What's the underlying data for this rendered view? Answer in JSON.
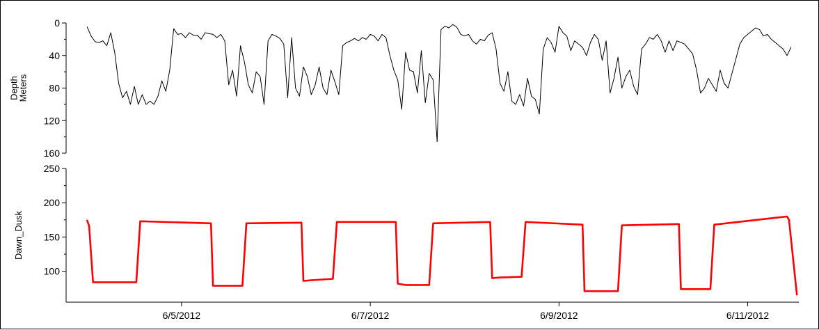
{
  "chart_data": [
    {
      "type": "line",
      "ylabel": [
        "Depth",
        "Meters"
      ],
      "yticks": [
        0,
        40,
        80,
        120,
        160
      ],
      "ylim": [
        0,
        160
      ],
      "y_inverted": true,
      "color": "#000000",
      "x": [
        "2012-06-04T00:00",
        "2012-06-04T01:00",
        "2012-06-04T02:00",
        "2012-06-04T03:00",
        "2012-06-04T04:00",
        "2012-06-04T05:00",
        "2012-06-04T06:00",
        "2012-06-04T07:00",
        "2012-06-04T08:00",
        "2012-06-04T09:00",
        "2012-06-04T10:00",
        "2012-06-04T11:00",
        "2012-06-04T12:00",
        "2012-06-04T13:00",
        "2012-06-04T14:00",
        "2012-06-04T15:00",
        "2012-06-04T16:00",
        "2012-06-04T17:00",
        "2012-06-04T18:00",
        "2012-06-04T19:00",
        "2012-06-04T20:00",
        "2012-06-04T21:00",
        "2012-06-04T22:00",
        "2012-06-04T23:00",
        "2012-06-05T00:00",
        "2012-06-05T01:00",
        "2012-06-05T02:00",
        "2012-06-05T03:00",
        "2012-06-05T04:00",
        "2012-06-05T05:00",
        "2012-06-05T06:00",
        "2012-06-05T07:00",
        "2012-06-05T08:00",
        "2012-06-05T09:00",
        "2012-06-05T10:00",
        "2012-06-05T11:00",
        "2012-06-05T12:00",
        "2012-06-05T13:00",
        "2012-06-05T14:00",
        "2012-06-05T15:00",
        "2012-06-05T16:00",
        "2012-06-05T17:00",
        "2012-06-05T18:00",
        "2012-06-05T19:00",
        "2012-06-05T20:00",
        "2012-06-05T21:00",
        "2012-06-05T22:00",
        "2012-06-05T23:00",
        "2012-06-06T00:00",
        "2012-06-06T01:00",
        "2012-06-06T02:00",
        "2012-06-06T03:00",
        "2012-06-06T04:00",
        "2012-06-06T05:00",
        "2012-06-06T06:00",
        "2012-06-06T07:00",
        "2012-06-06T08:00",
        "2012-06-06T09:00",
        "2012-06-06T10:00",
        "2012-06-06T11:00",
        "2012-06-06T12:00",
        "2012-06-06T13:00",
        "2012-06-06T14:00",
        "2012-06-06T15:00",
        "2012-06-06T16:00",
        "2012-06-06T17:00",
        "2012-06-06T18:00",
        "2012-06-06T19:00",
        "2012-06-06T20:00",
        "2012-06-06T21:00",
        "2012-06-06T22:00",
        "2012-06-06T23:00",
        "2012-06-07T00:00",
        "2012-06-07T01:00",
        "2012-06-07T02:00",
        "2012-06-07T03:00",
        "2012-06-07T04:00",
        "2012-06-07T05:00",
        "2012-06-07T06:00",
        "2012-06-07T07:00",
        "2012-06-07T08:00",
        "2012-06-07T09:00",
        "2012-06-07T10:00",
        "2012-06-07T11:00",
        "2012-06-07T12:00",
        "2012-06-07T13:00",
        "2012-06-07T14:00",
        "2012-06-07T15:00",
        "2012-06-07T16:00",
        "2012-06-07T17:00",
        "2012-06-07T18:00",
        "2012-06-07T19:00",
        "2012-06-07T20:00",
        "2012-06-07T21:00",
        "2012-06-07T22:00",
        "2012-06-07T23:00",
        "2012-06-08T00:00",
        "2012-06-08T01:00",
        "2012-06-08T02:00",
        "2012-06-08T03:00",
        "2012-06-08T04:00",
        "2012-06-08T05:00",
        "2012-06-08T06:00",
        "2012-06-08T07:00",
        "2012-06-08T08:00",
        "2012-06-08T09:00",
        "2012-06-08T10:00",
        "2012-06-08T11:00",
        "2012-06-08T12:00",
        "2012-06-08T13:00",
        "2012-06-08T14:00",
        "2012-06-08T15:00",
        "2012-06-08T16:00",
        "2012-06-08T17:00",
        "2012-06-08T18:00",
        "2012-06-08T19:00",
        "2012-06-08T20:00",
        "2012-06-08T21:00",
        "2012-06-08T22:00",
        "2012-06-08T23:00",
        "2012-06-09T00:00",
        "2012-06-09T01:00",
        "2012-06-09T02:00",
        "2012-06-09T03:00",
        "2012-06-09T04:00",
        "2012-06-09T05:00",
        "2012-06-09T06:00",
        "2012-06-09T07:00",
        "2012-06-09T08:00",
        "2012-06-09T09:00",
        "2012-06-09T10:00",
        "2012-06-09T11:00",
        "2012-06-09T12:00",
        "2012-06-09T13:00",
        "2012-06-09T14:00",
        "2012-06-09T15:00",
        "2012-06-09T16:00",
        "2012-06-09T17:00",
        "2012-06-09T18:00",
        "2012-06-09T19:00",
        "2012-06-09T20:00",
        "2012-06-09T21:00",
        "2012-06-09T22:00",
        "2012-06-09T23:00",
        "2012-06-10T00:00",
        "2012-06-10T01:00",
        "2012-06-10T02:00",
        "2012-06-10T03:00",
        "2012-06-10T04:00",
        "2012-06-10T05:00",
        "2012-06-10T06:00",
        "2012-06-10T07:00",
        "2012-06-10T08:00",
        "2012-06-10T09:00",
        "2012-06-10T10:00",
        "2012-06-10T11:00",
        "2012-06-10T12:00",
        "2012-06-10T13:00",
        "2012-06-10T14:00",
        "2012-06-10T15:00",
        "2012-06-10T16:00",
        "2012-06-10T17:00",
        "2012-06-10T18:00",
        "2012-06-10T19:00",
        "2012-06-10T20:00",
        "2012-06-10T21:00",
        "2012-06-10T22:00",
        "2012-06-10T23:00",
        "2012-06-11T00:00",
        "2012-06-11T01:00",
        "2012-06-11T02:00",
        "2012-06-11T03:00",
        "2012-06-11T04:00",
        "2012-06-11T05:00",
        "2012-06-11T06:00",
        "2012-06-11T07:00",
        "2012-06-11T08:00",
        "2012-06-11T09:00",
        "2012-06-11T10:00",
        "2012-06-11T11:00"
      ],
      "y": [
        5,
        16,
        23,
        24,
        22,
        28,
        12,
        36,
        74,
        92,
        84,
        100,
        78,
        100,
        88,
        100,
        96,
        100,
        90,
        71,
        84,
        58,
        7,
        14,
        13,
        18,
        12,
        15,
        15,
        20,
        12,
        13,
        14,
        18,
        14,
        22,
        76,
        58,
        90,
        28,
        48,
        76,
        86,
        60,
        66,
        100,
        22,
        14,
        16,
        19,
        26,
        92,
        18,
        80,
        90,
        54,
        66,
        88,
        76,
        54,
        80,
        88,
        58,
        72,
        88,
        28,
        24,
        22,
        19,
        22,
        18,
        20,
        14,
        16,
        22,
        14,
        18,
        40,
        58,
        70,
        106,
        36,
        58,
        60,
        86,
        34,
        98,
        62,
        70,
        146,
        8,
        4,
        6,
        2,
        5,
        14,
        16,
        14,
        22,
        26,
        20,
        22,
        15,
        12,
        32,
        74,
        84,
        60,
        96,
        100,
        88,
        102,
        68,
        90,
        94,
        112,
        32,
        18,
        24,
        36,
        4,
        12,
        16,
        34,
        22,
        26,
        30,
        40,
        24,
        14,
        20,
        46,
        22,
        86,
        68,
        42,
        80,
        66,
        58,
        78,
        88,
        32,
        26,
        18,
        20,
        14,
        22,
        36,
        22,
        34,
        22,
        24,
        26,
        32,
        38,
        58,
        86,
        80,
        68,
        76,
        84,
        58,
        74,
        80,
        62,
        44,
        26,
        18,
        14,
        10,
        6,
        8,
        16,
        14,
        20,
        24,
        28,
        32,
        40,
        30
      ]
    },
    {
      "type": "line",
      "ylabel": "Dawn_Dusk",
      "yticks": [
        100,
        150,
        200,
        250
      ],
      "ylim": [
        55,
        250
      ],
      "color": "#ff0000",
      "x": [
        "2012-06-04T00:00",
        "2012-06-04T00:30",
        "2012-06-04T01:30",
        "2012-06-04T05:30",
        "2012-06-04T12:30",
        "2012-06-04T13:30",
        "2012-06-05T07:30",
        "2012-06-05T08:00",
        "2012-06-05T09:30",
        "2012-06-05T15:30",
        "2012-06-05T16:30",
        "2012-06-06T06:30",
        "2012-06-06T07:00",
        "2012-06-06T09:00",
        "2012-06-06T14:30",
        "2012-06-06T15:30",
        "2012-06-07T06:30",
        "2012-06-07T07:00",
        "2012-06-07T09:00",
        "2012-06-07T15:00",
        "2012-06-07T16:00",
        "2012-06-08T06:30",
        "2012-06-08T07:00",
        "2012-06-08T09:00",
        "2012-06-08T14:30",
        "2012-06-08T15:30",
        "2012-06-09T06:00",
        "2012-06-09T06:30",
        "2012-06-09T08:30",
        "2012-06-09T15:00",
        "2012-06-09T16:00",
        "2012-06-10T06:30",
        "2012-06-10T07:00",
        "2012-06-10T09:00",
        "2012-06-10T14:30",
        "2012-06-10T15:30",
        "2012-06-11T10:00",
        "2012-06-11T10:30",
        "2012-06-11T12:30"
      ],
      "y": [
        174,
        166,
        84,
        84,
        84,
        173,
        170,
        79,
        79,
        79,
        170,
        171,
        86,
        87,
        89,
        172,
        172,
        82,
        80,
        80,
        170,
        172,
        90,
        91,
        92,
        172,
        168,
        71,
        71,
        71,
        167,
        169,
        74,
        74,
        74,
        168,
        180,
        175,
        66
      ]
    }
  ],
  "x_ticks": [
    {
      "label": "6/5/2012",
      "date": "2012-06-05T00:00"
    },
    {
      "label": "6/7/2012",
      "date": "2012-06-07T00:00"
    },
    {
      "label": "6/9/2012",
      "date": "2012-06-09T00:00"
    },
    {
      "label": "6/11/2012",
      "date": "2012-06-11T00:00"
    }
  ],
  "xlim": [
    "2012-06-03T19:00",
    "2012-06-11T13:00"
  ]
}
